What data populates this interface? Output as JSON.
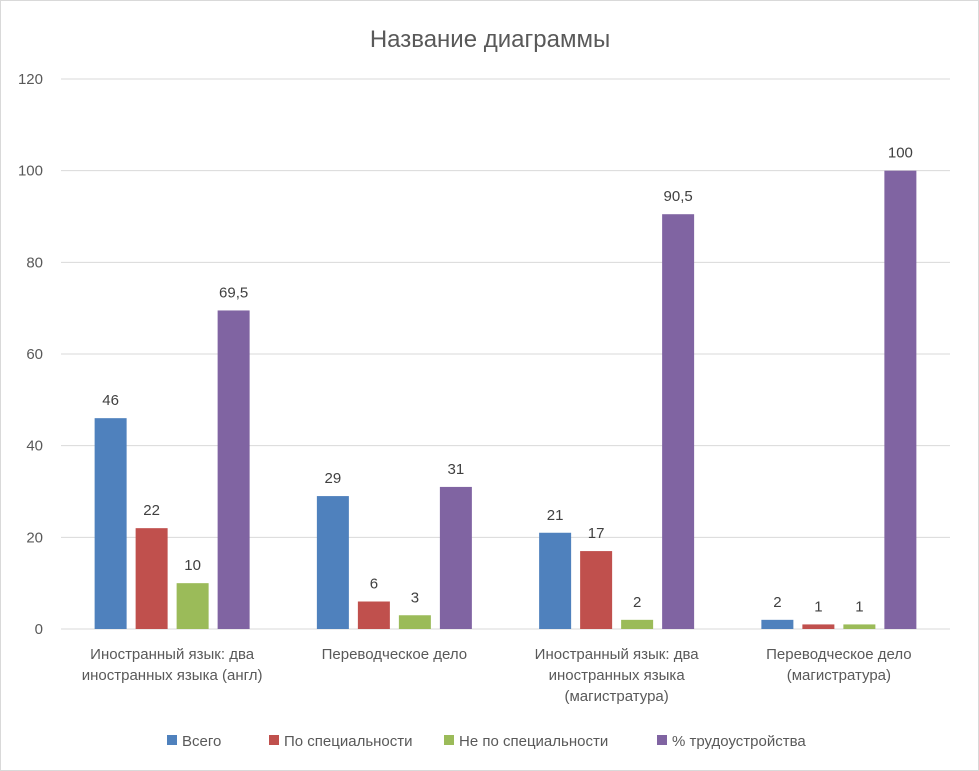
{
  "chart_data": {
    "type": "bar",
    "title": "Название диаграммы",
    "xlabel": "",
    "ylabel": "",
    "ylim": [
      0,
      120
    ],
    "yticks": [
      0,
      20,
      40,
      60,
      80,
      100,
      120
    ],
    "grid": true,
    "legend_position": "bottom",
    "categories": [
      [
        "Иностранный язык: два",
        "иностранных языка (англ)"
      ],
      [
        "Переводческое дело"
      ],
      [
        "Иностранный язык: два",
        "иностранных языка",
        "(магистратура)"
      ],
      [
        "Переводческое дело",
        "(магистратура)"
      ]
    ],
    "series": [
      {
        "name": "Всего",
        "color": "#4f81bd",
        "values": [
          46,
          29,
          21,
          2
        ],
        "labels": [
          "46",
          "29",
          "21",
          "2"
        ]
      },
      {
        "name": "По специальности",
        "color": "#c0504d",
        "values": [
          22,
          6,
          17,
          1
        ],
        "labels": [
          "22",
          "6",
          "17",
          "1"
        ]
      },
      {
        "name": "Не по специальности",
        "color": "#9bbb59",
        "values": [
          10,
          3,
          2,
          1
        ],
        "labels": [
          "10",
          "3",
          "2",
          "1"
        ]
      },
      {
        "name": "% трудоустройства",
        "color": "#8064a2",
        "values": [
          69.5,
          31,
          90.5,
          100
        ],
        "labels": [
          "69,5",
          "31",
          "90,5",
          "100"
        ]
      }
    ]
  }
}
